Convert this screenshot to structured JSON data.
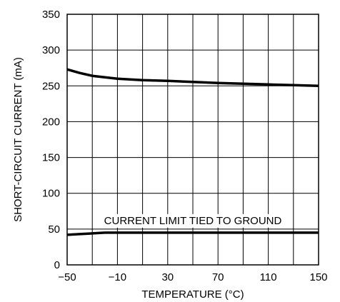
{
  "chart_data": {
    "type": "line",
    "xlabel": "TEMPERATURE (°C)",
    "ylabel": "SHORT-CIRCUIT CURRENT (mA)",
    "xlim": [
      -50,
      150
    ],
    "ylim": [
      0,
      350
    ],
    "x_ticks": [
      -50,
      -30,
      -10,
      10,
      30,
      50,
      70,
      90,
      110,
      130,
      150
    ],
    "x_tick_labels": [
      "−50",
      "",
      "−10",
      "",
      "30",
      "",
      "70",
      "",
      "110",
      "",
      "150"
    ],
    "y_ticks": [
      0,
      50,
      100,
      150,
      200,
      250,
      300,
      350
    ],
    "y_tick_labels": [
      "0",
      "50",
      "100",
      "150",
      "200",
      "250",
      "300",
      "350"
    ],
    "grid": true,
    "series": [
      {
        "x": [
          -50,
          -40,
          -30,
          -20,
          -10,
          0,
          10,
          30,
          50,
          70,
          90,
          110,
          130,
          150
        ],
        "y": [
          273,
          268,
          264,
          262,
          260,
          259,
          258,
          257,
          255.5,
          254,
          253,
          252,
          251,
          250
        ]
      },
      {
        "x": [
          -50,
          -40,
          -30,
          -20,
          -10,
          10,
          30,
          50,
          70,
          90,
          110,
          130,
          150
        ],
        "y": [
          42,
          43,
          44,
          45,
          45,
          45,
          45,
          45,
          45,
          45,
          45,
          45,
          45
        ]
      }
    ],
    "annotations": [
      {
        "text": "CURRENT LIMIT TIED TO GROUND",
        "x": 50,
        "y": 62
      }
    ],
    "line_color": "#000000",
    "grid_color": "#000000"
  }
}
